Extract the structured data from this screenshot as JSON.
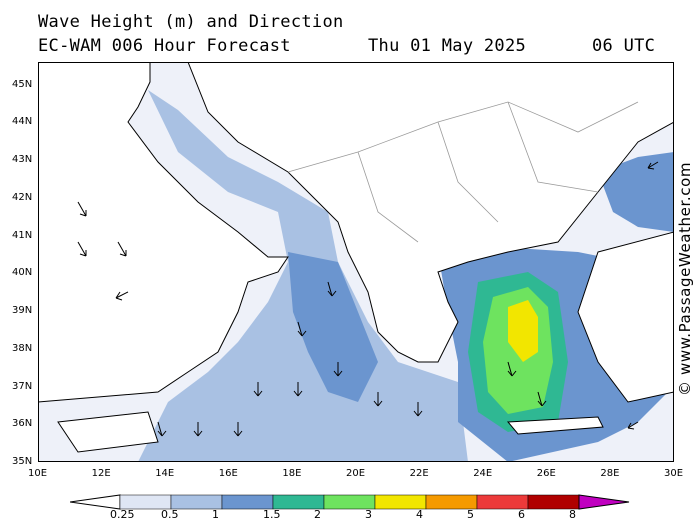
{
  "header": {
    "title": "Wave Height (m) and Direction",
    "model": "EC-WAM 006 Hour Forecast",
    "date": "Thu 01 May 2025",
    "time": "06 UTC"
  },
  "credit": "© www.PassageWeather.com",
  "map": {
    "lat_labels": [
      "45N",
      "44N",
      "43N",
      "42N",
      "41N",
      "40N",
      "39N",
      "38N",
      "37N",
      "36N",
      "35N"
    ],
    "lon_labels": [
      "10E",
      "12E",
      "14E",
      "16E",
      "18E",
      "20E",
      "22E",
      "24E",
      "26E",
      "28E",
      "30E"
    ],
    "extent": {
      "lon": [
        10,
        30
      ],
      "lat": [
        35,
        45.6
      ]
    }
  },
  "legend": {
    "labels": [
      "0.25",
      "0.5",
      "1",
      "1.5",
      "2",
      "3",
      "4",
      "5",
      "6",
      "8"
    ],
    "colors": [
      "#dfe6f4",
      "#a9c1e3",
      "#6b95cf",
      "#2fb893",
      "#6ee35f",
      "#f2e600",
      "#f59a00",
      "#ec3a3a",
      "#b00000",
      "#c000c0"
    ]
  },
  "colors": {
    "sea": "#eef1f9",
    "land": "#ffffff",
    "coast": "#000000",
    "border": "#9a9a9a"
  }
}
